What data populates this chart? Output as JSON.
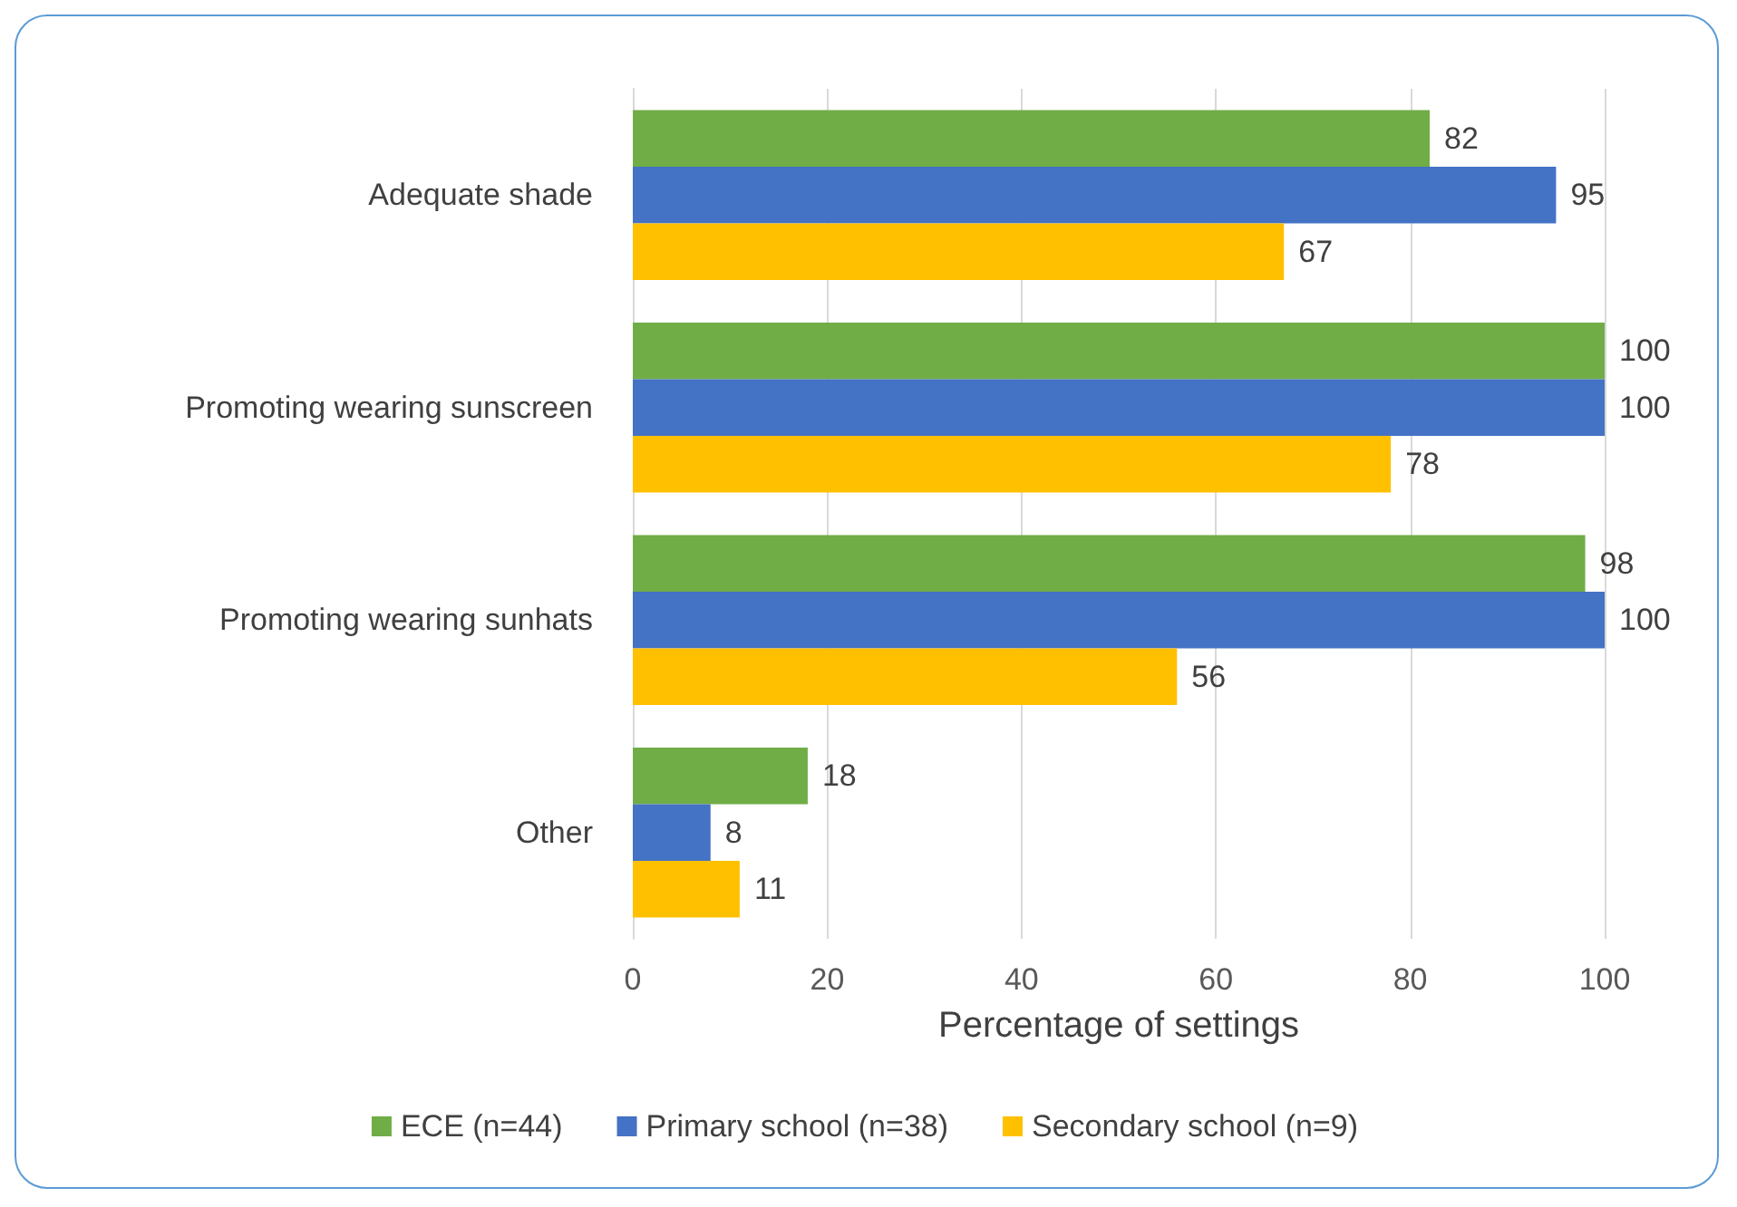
{
  "chart_data": {
    "type": "bar",
    "orientation": "horizontal",
    "xlabel": "Percentage of settings",
    "categories": [
      "Adequate shade",
      "Promoting wearing sunscreen",
      "Promoting wearing sunhats",
      "Other"
    ],
    "series": [
      {
        "name": "ECE (n=44)",
        "color": "#70ad47",
        "values": [
          82,
          100,
          98,
          18
        ]
      },
      {
        "name": "Primary school (n=38)",
        "color": "#4472c4",
        "values": [
          95,
          100,
          100,
          8
        ]
      },
      {
        "name": "Secondary school (n=9)",
        "color": "#ffc000",
        "values": [
          67,
          78,
          56,
          11
        ]
      }
    ],
    "xlim": [
      0,
      100
    ],
    "xticks": [
      0,
      20,
      40,
      60,
      80,
      100
    ],
    "grid": "x",
    "legend": "bottom",
    "data_labels": true
  }
}
